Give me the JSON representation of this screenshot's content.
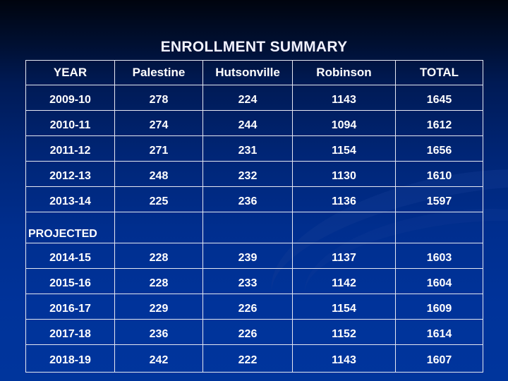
{
  "title": "ENROLLMENT SUMMARY",
  "colors": {
    "background_top": "#00040e",
    "background_bottom": "#00359c",
    "text": "#ffffff",
    "grid": "#e6e8f2"
  },
  "table": {
    "headers": [
      "YEAR",
      "Palestine",
      "Hutsonville",
      "Robinson",
      "TOTAL"
    ],
    "actual_rows": [
      [
        "2009-10",
        "278",
        "224",
        "1143",
        "1645"
      ],
      [
        "2010-11",
        "274",
        "244",
        "1094",
        "1612"
      ],
      [
        "2011-12",
        "271",
        "231",
        "1154",
        "1656"
      ],
      [
        "2012-13",
        "248",
        "232",
        "1130",
        "1610"
      ],
      [
        "2013-14",
        "225",
        "236",
        "1136",
        "1597"
      ]
    ],
    "projected_label": "PROJECTED",
    "projected_rows": [
      [
        "2014-15",
        "228",
        "239",
        "1137",
        "1603"
      ],
      [
        "2015-16",
        "228",
        "233",
        "1142",
        "1604"
      ],
      [
        "2016-17",
        "229",
        "226",
        "1154",
        "1609"
      ],
      [
        "2017-18",
        "236",
        "226",
        "1152",
        "1614"
      ],
      [
        "2018-19",
        "242",
        "222",
        "1143",
        "1607"
      ]
    ]
  }
}
